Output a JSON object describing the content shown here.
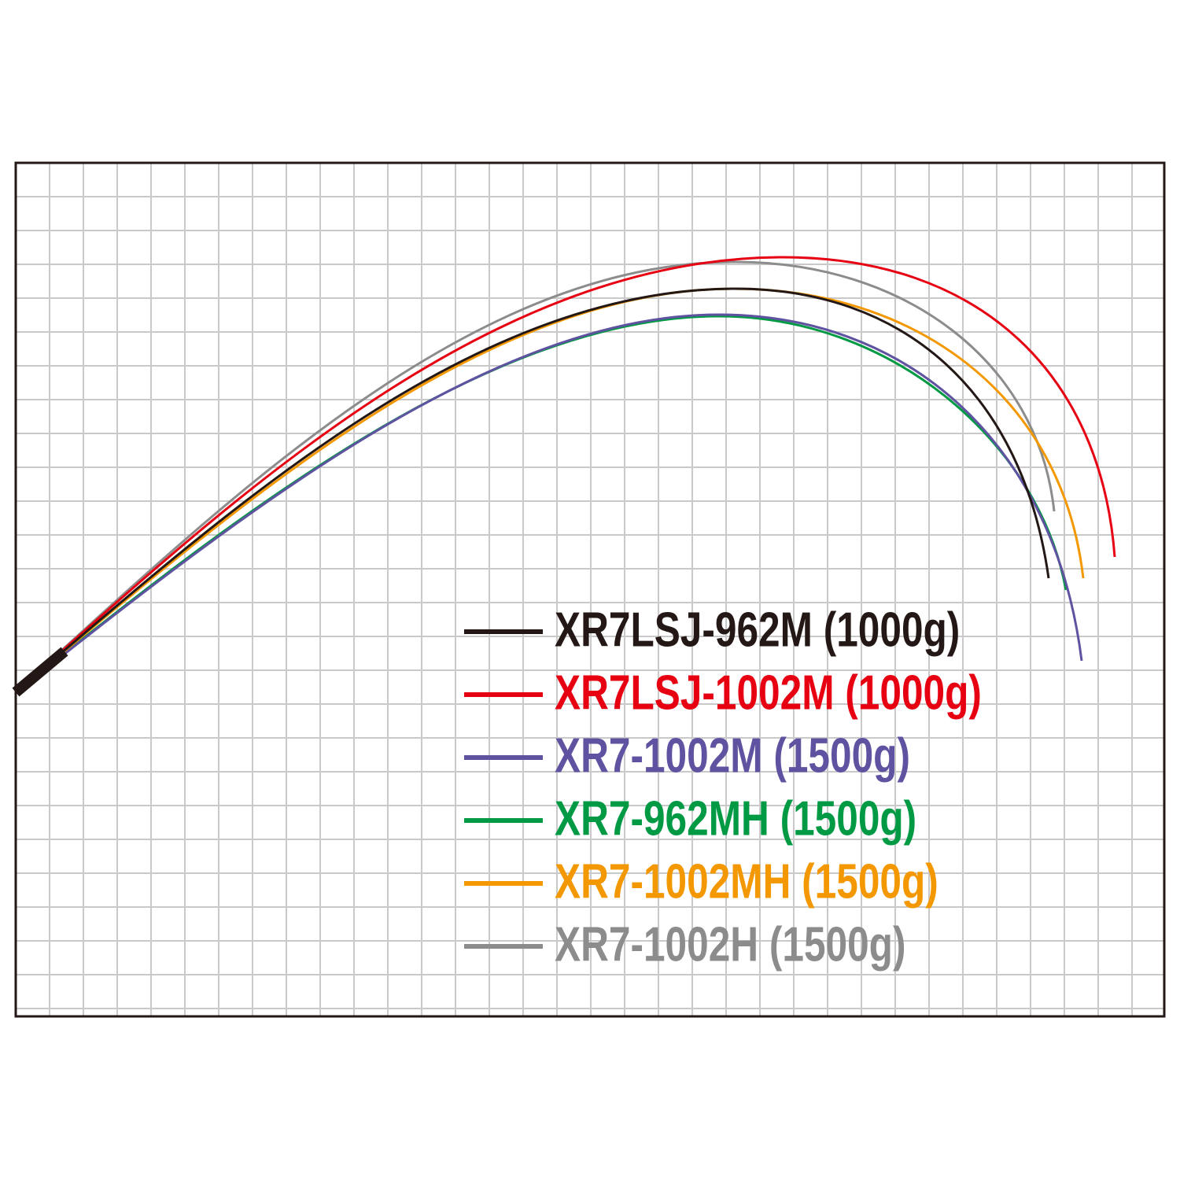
{
  "legend": {
    "items": [
      {
        "label": "XR7LSJ-962M (1000g)",
        "color": "#231815"
      },
      {
        "label": "XR7LSJ-1002M (1000g)",
        "color": "#e60012"
      },
      {
        "label": "XR7-1002M (1500g)",
        "color": "#5f52a0"
      },
      {
        "label": "XR7-962MH (1500g)",
        "color": "#009944"
      },
      {
        "label": "XR7-1002MH (1500g)",
        "color": "#f39800"
      },
      {
        "label": "XR7-1002H (1500g)",
        "color": "#8c8c8c"
      }
    ]
  }
}
